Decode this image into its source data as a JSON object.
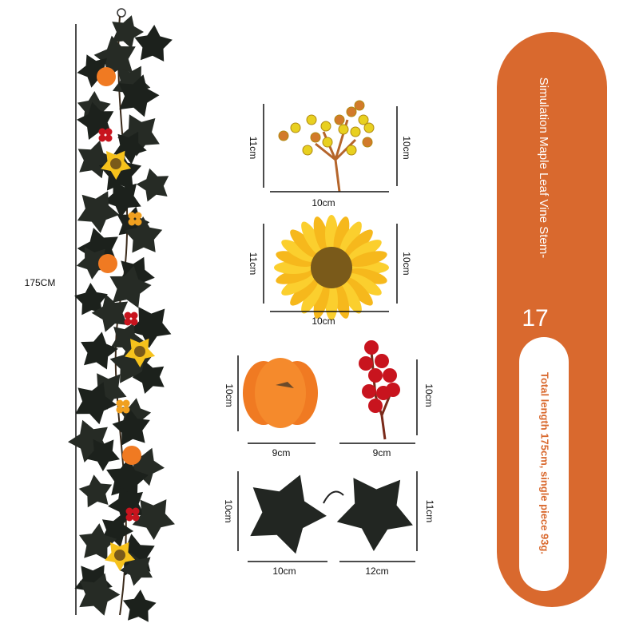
{
  "vine": {
    "length_label": "175CM"
  },
  "items": [
    {
      "left": "11cm",
      "right": "10cm",
      "bottom": "10cm"
    },
    {
      "left": "11cm",
      "right": "10cm",
      "bottom": "10cm"
    },
    {
      "left": "10cm",
      "bottom": "9cm"
    },
    {
      "right": "10cm",
      "bottom": "9cm"
    },
    {
      "left": "10cm",
      "right": "11cm",
      "bottom_left": "10cm",
      "bottom_right": "12cm"
    }
  ],
  "panel": {
    "title": "Simulation Maple Leaf Vine Stem-",
    "number": "17",
    "description": "Total length 175cm, single piece 93g."
  }
}
